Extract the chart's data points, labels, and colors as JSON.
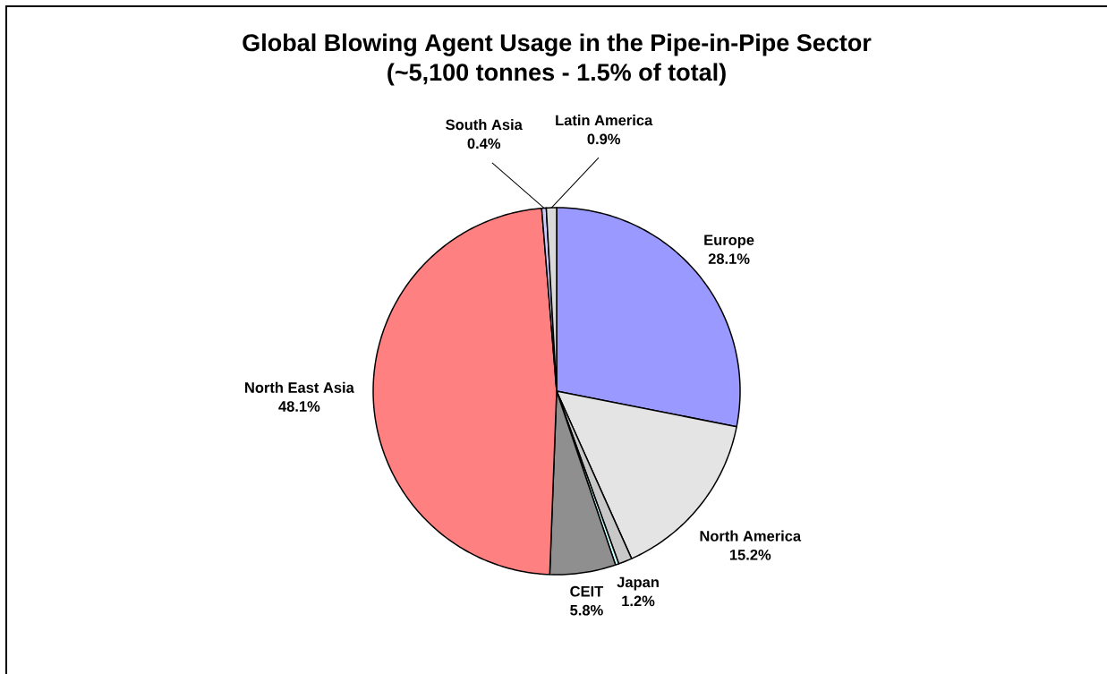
{
  "chart_data": {
    "type": "pie",
    "title": "Global Blowing Agent Usage in the Pipe-in-Pipe Sector",
    "subtitle": "(~5,100 tonnes - 1.5% of total)",
    "categories": [
      "Europe",
      "North America",
      "Japan",
      null,
      "CEIT",
      "North East Asia",
      "South Asia",
      "Latin America"
    ],
    "values": [
      28.1,
      15.2,
      1.2,
      0.3,
      5.8,
      48.1,
      0.4,
      0.9
    ],
    "value_labels": [
      "28.1%",
      "15.2%",
      "1.2%",
      null,
      "5.8%",
      "48.1%",
      "0.4%",
      "0.9%"
    ],
    "colors": [
      "#9999ff",
      "#e4e4e4",
      "#c8c8c8",
      "#ccffff",
      "#8f8f8f",
      "#ff8080",
      "#ccccff",
      "#d9d9d9"
    ]
  }
}
